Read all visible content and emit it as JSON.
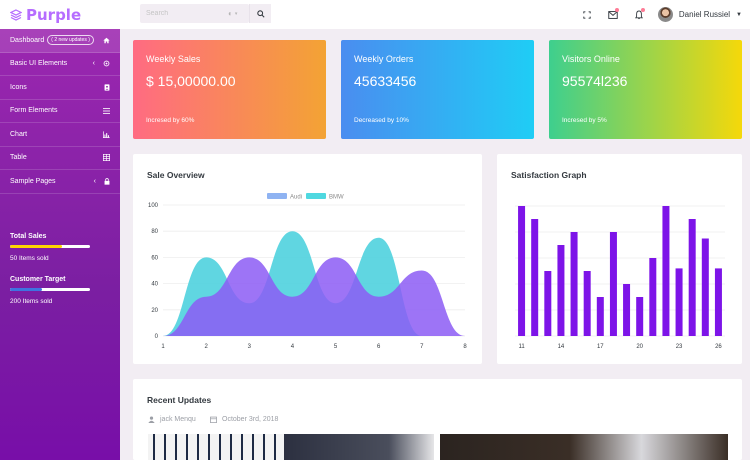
{
  "brand": {
    "name": "Purple"
  },
  "header": {
    "search_placeholder": "Search",
    "user_name": "Daniel Russiel",
    "icons": [
      "fullscreen-icon",
      "mail-icon",
      "bell-icon"
    ],
    "badge_colors": {
      "mail": "#fe7c96",
      "bell": "#fe7c96"
    }
  },
  "sidebar": {
    "items": [
      {
        "label": "Dashboard",
        "badge": "2 new updates",
        "icon": "home-icon",
        "active": true
      },
      {
        "label": "Basic UI Elements",
        "icon": "crosshair-icon",
        "has_chevron": true
      },
      {
        "label": "Icons",
        "icon": "contacts-icon"
      },
      {
        "label": "Form Elements",
        "icon": "list-icon"
      },
      {
        "label": "Chart",
        "icon": "bar-chart-icon"
      },
      {
        "label": "Table",
        "icon": "table-icon"
      },
      {
        "label": "Sample Pages",
        "icon": "lock-icon",
        "has_chevron": true
      }
    ],
    "stats": [
      {
        "title": "Total Sales",
        "sub": "50 Items sold",
        "progress": 0.65,
        "color": "#ffd500"
      },
      {
        "title": "Customer Target",
        "sub": "200 Items sold",
        "progress": 0.4,
        "color": "#3f73e0"
      }
    ]
  },
  "cards": [
    {
      "title": "Weekly Sales",
      "value": "$ 15,00000.00",
      "sub": "Incresed by 60%"
    },
    {
      "title": "Weekly Orders",
      "value": "45633456",
      "sub": "Decreased by 10%"
    },
    {
      "title": "Visitors Online",
      "value": "95574l236",
      "sub": "Incresed by 5%"
    }
  ],
  "sale_overview": {
    "title": "Sale Overview",
    "chart_data": {
      "type": "area",
      "x": [
        1,
        2,
        3,
        4,
        5,
        6,
        7,
        8
      ],
      "ylim": [
        0,
        100
      ],
      "yticks": [
        0,
        20,
        40,
        60,
        80,
        100
      ],
      "series": [
        {
          "name": "Audi",
          "values": [
            0,
            30,
            60,
            30,
            60,
            30,
            50,
            0
          ],
          "color": "#8c5cf5"
        },
        {
          "name": "BMW",
          "values": [
            0,
            60,
            25,
            80,
            25,
            75,
            0,
            0
          ],
          "color": "#4fd1de"
        }
      ],
      "legend_position": "top-center"
    }
  },
  "satisfaction": {
    "title": "Satisfaction Graph",
    "chart_data": {
      "type": "bar",
      "categories": [
        11,
        12,
        13,
        14,
        15,
        16,
        17,
        18,
        19,
        20,
        21,
        22,
        23,
        24,
        25,
        26
      ],
      "xticks": [
        11,
        14,
        17,
        20,
        23,
        26
      ],
      "values": [
        100,
        90,
        50,
        70,
        80,
        50,
        30,
        80,
        40,
        30,
        60,
        100,
        52,
        90,
        75,
        52
      ],
      "ylim": [
        0,
        100
      ],
      "color": "#7d14e8"
    }
  },
  "recent_updates": {
    "title": "Recent Updates",
    "author": "jack Menqu",
    "date": "October 3rd, 2018"
  }
}
